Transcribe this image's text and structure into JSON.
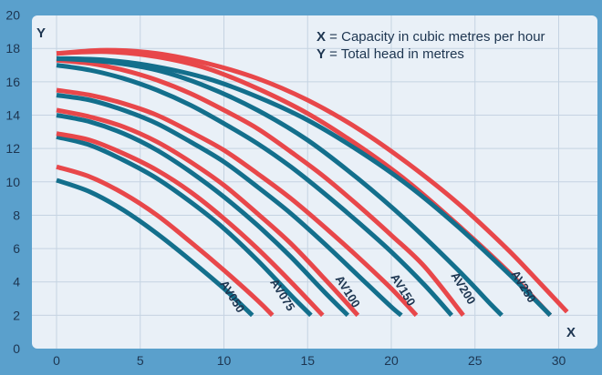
{
  "chart_data": {
    "type": "line",
    "title": "",
    "x_axis_letter": "X",
    "y_axis_letter": "Y",
    "legend_lines": [
      {
        "key": "X",
        "text": " = Capacity in cubic metres per hour"
      },
      {
        "key": "Y",
        "text": " = Total head in metres"
      }
    ],
    "xlim": [
      -1.5,
      32
    ],
    "ylim": [
      0,
      20
    ],
    "x_ticks": [
      0,
      5,
      10,
      15,
      20,
      25,
      30
    ],
    "y_ticks": [
      0,
      2,
      4,
      6,
      8,
      10,
      12,
      14,
      16,
      18,
      20
    ],
    "grid": true,
    "colors": {
      "background": "#5aa0cc",
      "plot_area": "#e9f0f7",
      "grid": "#c5d3e2",
      "blue_curve": "#136f8c",
      "red_curve": "#e8474a",
      "text": "#1d3550"
    },
    "series": [
      {
        "name": "AV050",
        "label_x": 10.3,
        "label_y": 3.0,
        "curves": [
          {
            "color": "blue",
            "points": [
              [
                0,
                10.1
              ],
              [
                2,
                9.4
              ],
              [
                4,
                8.3
              ],
              [
                6,
                6.9
              ],
              [
                8,
                5.3
              ],
              [
                10,
                3.6
              ],
              [
                11.7,
                2.0
              ]
            ]
          },
          {
            "color": "red",
            "points": [
              [
                0,
                10.9
              ],
              [
                2,
                10.3
              ],
              [
                4,
                9.3
              ],
              [
                6,
                8.0
              ],
              [
                8,
                6.4
              ],
              [
                10,
                4.7
              ],
              [
                12,
                2.9
              ],
              [
                12.9,
                2.0
              ]
            ]
          }
        ]
      },
      {
        "name": "AV075",
        "label_x": 13.3,
        "label_y": 3.1,
        "curves": [
          {
            "color": "blue",
            "points": [
              [
                0,
                12.7
              ],
              [
                2,
                12.2
              ],
              [
                4,
                11.3
              ],
              [
                6,
                10.2
              ],
              [
                8,
                8.8
              ],
              [
                10,
                7.2
              ],
              [
                12,
                5.3
              ],
              [
                14,
                3.2
              ],
              [
                15.2,
                2.0
              ]
            ]
          },
          {
            "color": "red",
            "points": [
              [
                0,
                12.9
              ],
              [
                2,
                12.5
              ],
              [
                4,
                11.7
              ],
              [
                6,
                10.7
              ],
              [
                8,
                9.4
              ],
              [
                10,
                7.8
              ],
              [
                12,
                6.0
              ],
              [
                14,
                4.0
              ],
              [
                15.9,
                2.0
              ]
            ]
          }
        ]
      },
      {
        "name": "AV100",
        "label_x": 17.2,
        "label_y": 3.3,
        "curves": [
          {
            "color": "blue",
            "points": [
              [
                0,
                14.0
              ],
              [
                2,
                13.6
              ],
              [
                4,
                12.9
              ],
              [
                6,
                11.9
              ],
              [
                8,
                10.6
              ],
              [
                10,
                9.1
              ],
              [
                12,
                7.4
              ],
              [
                14,
                5.5
              ],
              [
                16,
                3.4
              ],
              [
                17.4,
                2.0
              ]
            ]
          },
          {
            "color": "red",
            "points": [
              [
                0,
                14.3
              ],
              [
                2,
                13.9
              ],
              [
                4,
                13.3
              ],
              [
                6,
                12.4
              ],
              [
                8,
                11.2
              ],
              [
                10,
                9.8
              ],
              [
                12,
                8.1
              ],
              [
                14,
                6.3
              ],
              [
                16,
                4.2
              ],
              [
                18.0,
                2.0
              ]
            ]
          }
        ]
      },
      {
        "name": "AV150",
        "label_x": 20.5,
        "label_y": 3.4,
        "curves": [
          {
            "color": "blue",
            "points": [
              [
                0,
                15.2
              ],
              [
                2,
                14.9
              ],
              [
                4,
                14.3
              ],
              [
                6,
                13.5
              ],
              [
                8,
                12.4
              ],
              [
                10,
                11.2
              ],
              [
                12,
                9.7
              ],
              [
                14,
                8.1
              ],
              [
                16,
                6.3
              ],
              [
                18,
                4.4
              ],
              [
                20,
                2.5
              ],
              [
                20.6,
                2.0
              ]
            ]
          },
          {
            "color": "red",
            "points": [
              [
                0,
                15.5
              ],
              [
                2,
                15.2
              ],
              [
                4,
                14.7
              ],
              [
                6,
                14.0
              ],
              [
                8,
                13.0
              ],
              [
                10,
                11.9
              ],
              [
                12,
                10.5
              ],
              [
                14,
                9.0
              ],
              [
                16,
                7.3
              ],
              [
                18,
                5.5
              ],
              [
                20,
                3.6
              ],
              [
                21.5,
                2.0
              ]
            ]
          }
        ]
      },
      {
        "name": "AV200",
        "label_x": 24.1,
        "label_y": 3.5,
        "curves": [
          {
            "color": "blue",
            "points": [
              [
                0,
                17.0
              ],
              [
                2,
                16.7
              ],
              [
                4,
                16.2
              ],
              [
                6,
                15.5
              ],
              [
                8,
                14.6
              ],
              [
                10,
                13.5
              ],
              [
                12,
                12.3
              ],
              [
                14,
                10.9
              ],
              [
                16,
                9.3
              ],
              [
                18,
                7.6
              ],
              [
                20,
                5.8
              ],
              [
                22,
                3.8
              ],
              [
                23.6,
                2.0
              ]
            ]
          },
          {
            "color": "red",
            "points": [
              [
                0,
                17.3
              ],
              [
                2,
                17.1
              ],
              [
                4,
                16.7
              ],
              [
                6,
                16.1
              ],
              [
                8,
                15.3
              ],
              [
                10,
                14.3
              ],
              [
                12,
                13.2
              ],
              [
                14,
                11.8
              ],
              [
                16,
                10.3
              ],
              [
                18,
                8.6
              ],
              [
                20,
                6.8
              ],
              [
                22,
                4.9
              ],
              [
                24.3,
                2.0
              ]
            ]
          }
        ]
      },
      {
        "name": "AV250",
        "label_x": 27.7,
        "label_y": 3.6,
        "curves": [
          {
            "color": "blue",
            "points": [
              [
                0,
                17.4
              ],
              [
                3,
                17.2
              ],
              [
                6,
                16.7
              ],
              [
                9,
                15.7
              ],
              [
                12,
                14.3
              ],
              [
                15,
                12.5
              ],
              [
                18,
                10.2
              ],
              [
                21,
                7.6
              ],
              [
                24,
                4.7
              ],
              [
                26,
                2.6
              ],
              [
                26.6,
                2.0
              ]
            ]
          },
          {
            "color": "red",
            "points": [
              [
                0,
                17.7
              ],
              [
                3,
                17.8
              ],
              [
                6,
                17.5
              ],
              [
                9,
                16.8
              ],
              [
                12,
                15.6
              ],
              [
                15,
                14.1
              ],
              [
                18,
                12.2
              ],
              [
                21,
                10.0
              ],
              [
                24,
                7.4
              ],
              [
                27,
                4.6
              ],
              [
                29.5,
                2.0
              ]
            ]
          },
          {
            "color": "blue",
            "points": [
              [
                0,
                17.4
              ],
              [
                3,
                17.3
              ],
              [
                6,
                16.9
              ],
              [
                9,
                16.2
              ],
              [
                12,
                15.1
              ],
              [
                15,
                13.7
              ],
              [
                18,
                11.9
              ],
              [
                21,
                9.8
              ],
              [
                24,
                7.3
              ],
              [
                27,
                4.5
              ],
              [
                29.5,
                2.0
              ]
            ]
          },
          {
            "color": "red",
            "points": [
              [
                0,
                17.7
              ],
              [
                3,
                17.9
              ],
              [
                6,
                17.7
              ],
              [
                9,
                17.1
              ],
              [
                12,
                16.2
              ],
              [
                15,
                14.9
              ],
              [
                18,
                13.2
              ],
              [
                21,
                11.1
              ],
              [
                24,
                8.7
              ],
              [
                27,
                5.9
              ],
              [
                29,
                3.8
              ],
              [
                30.5,
                2.2
              ]
            ]
          }
        ]
      }
    ]
  }
}
